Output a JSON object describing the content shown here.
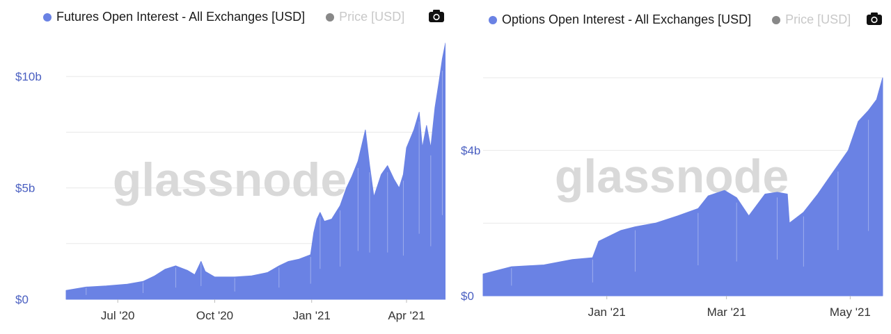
{
  "colors": {
    "series": "#6a82e4",
    "price_dot": "#888888",
    "price_text": "#c8c8c8",
    "axis_text": "#4a5fc1",
    "tick_text": "#333333",
    "grid": "#e8e8e8",
    "watermark": "#d9d9d9"
  },
  "watermark": "glassnode",
  "chart_data": [
    {
      "type": "area",
      "legend": {
        "series_name": "Futures Open Interest - All Exchanges [USD]",
        "price_name": "Price [USD]",
        "placement": "top"
      },
      "y_ticks": [
        {
          "value": 0,
          "label": "$0"
        },
        {
          "value": 5,
          "label": "$5b"
        },
        {
          "value": 10,
          "label": "$10b"
        }
      ],
      "ylim": [
        0,
        11.5
      ],
      "x_range": [
        "2020-05-13",
        "2021-05-08"
      ],
      "x_ticks": [
        {
          "date": "2020-07-01",
          "label": "Jul '20"
        },
        {
          "date": "2020-10-01",
          "label": "Oct '20"
        },
        {
          "date": "2021-01-01",
          "label": "Jan '21"
        },
        {
          "date": "2021-04-01",
          "label": "Apr '21"
        }
      ],
      "grid": true,
      "unit": "billion USD",
      "series": [
        {
          "name": "Futures Open Interest - All Exchanges [USD]",
          "points": [
            [
              "2020-05-13",
              0.4
            ],
            [
              "2020-06-01",
              0.55
            ],
            [
              "2020-06-20",
              0.6
            ],
            [
              "2020-07-10",
              0.68
            ],
            [
              "2020-07-25",
              0.8
            ],
            [
              "2020-08-05",
              1.05
            ],
            [
              "2020-08-15",
              1.35
            ],
            [
              "2020-08-25",
              1.5
            ],
            [
              "2020-09-05",
              1.3
            ],
            [
              "2020-09-12",
              1.1
            ],
            [
              "2020-09-18",
              1.7
            ],
            [
              "2020-09-22",
              1.25
            ],
            [
              "2020-10-01",
              1.0
            ],
            [
              "2020-10-20",
              1.0
            ],
            [
              "2020-11-05",
              1.05
            ],
            [
              "2020-11-20",
              1.2
            ],
            [
              "2020-12-01",
              1.5
            ],
            [
              "2020-12-10",
              1.7
            ],
            [
              "2020-12-20",
              1.8
            ],
            [
              "2020-12-31",
              2.0
            ],
            [
              "2021-01-03",
              3.0
            ],
            [
              "2021-01-06",
              3.6
            ],
            [
              "2021-01-09",
              3.9
            ],
            [
              "2021-01-13",
              3.5
            ],
            [
              "2021-01-20",
              3.6
            ],
            [
              "2021-01-28",
              4.2
            ],
            [
              "2021-02-03",
              5.0
            ],
            [
              "2021-02-08",
              5.5
            ],
            [
              "2021-02-14",
              6.2
            ],
            [
              "2021-02-18",
              7.0
            ],
            [
              "2021-02-21",
              7.6
            ],
            [
              "2021-02-25",
              6.0
            ],
            [
              "2021-03-01",
              4.6
            ],
            [
              "2021-03-08",
              5.6
            ],
            [
              "2021-03-14",
              6.0
            ],
            [
              "2021-03-20",
              5.4
            ],
            [
              "2021-03-25",
              5.0
            ],
            [
              "2021-03-29",
              5.6
            ],
            [
              "2021-04-01",
              6.8
            ],
            [
              "2021-04-08",
              7.6
            ],
            [
              "2021-04-13",
              8.4
            ],
            [
              "2021-04-16",
              6.8
            ],
            [
              "2021-04-20",
              7.8
            ],
            [
              "2021-04-24",
              6.8
            ],
            [
              "2021-04-28",
              8.6
            ],
            [
              "2021-05-02",
              9.8
            ],
            [
              "2021-05-05",
              10.8
            ],
            [
              "2021-05-08",
              11.5
            ]
          ]
        }
      ]
    },
    {
      "type": "area",
      "legend": {
        "series_name": "Options Open Interest - All Exchanges [USD]",
        "price_name": "Price [USD]",
        "placement": "top"
      },
      "y_ticks": [
        {
          "value": 0,
          "label": "$0"
        },
        {
          "value": 4,
          "label": "$4b"
        }
      ],
      "ylim": [
        0,
        6.0
      ],
      "x_range": [
        "2020-11-01",
        "2021-05-17"
      ],
      "x_ticks": [
        {
          "date": "2021-01-01",
          "label": "Jan '21"
        },
        {
          "date": "2021-03-01",
          "label": "Mar '21"
        },
        {
          "date": "2021-05-01",
          "label": "May '21"
        }
      ],
      "grid": true,
      "unit": "billion USD",
      "series": [
        {
          "name": "Options Open Interest - All Exchanges [USD]",
          "points": [
            [
              "2020-11-01",
              0.6
            ],
            [
              "2020-11-15",
              0.8
            ],
            [
              "2020-12-01",
              0.85
            ],
            [
              "2020-12-15",
              1.0
            ],
            [
              "2020-12-25",
              1.05
            ],
            [
              "2020-12-28",
              1.5
            ],
            [
              "2021-01-08",
              1.8
            ],
            [
              "2021-01-15",
              1.9
            ],
            [
              "2021-01-25",
              2.0
            ],
            [
              "2021-02-05",
              2.2
            ],
            [
              "2021-02-15",
              2.4
            ],
            [
              "2021-02-20",
              2.75
            ],
            [
              "2021-02-28",
              2.9
            ],
            [
              "2021-03-06",
              2.7
            ],
            [
              "2021-03-12",
              2.2
            ],
            [
              "2021-03-20",
              2.8
            ],
            [
              "2021-03-26",
              2.85
            ],
            [
              "2021-03-31",
              2.8
            ],
            [
              "2021-04-01",
              2.0
            ],
            [
              "2021-04-08",
              2.3
            ],
            [
              "2021-04-15",
              2.8
            ],
            [
              "2021-04-20",
              3.2
            ],
            [
              "2021-04-25",
              3.6
            ],
            [
              "2021-04-30",
              4.0
            ],
            [
              "2021-05-05",
              4.8
            ],
            [
              "2021-05-10",
              5.1
            ],
            [
              "2021-05-14",
              5.4
            ],
            [
              "2021-05-17",
              6.0
            ]
          ]
        }
      ]
    }
  ]
}
